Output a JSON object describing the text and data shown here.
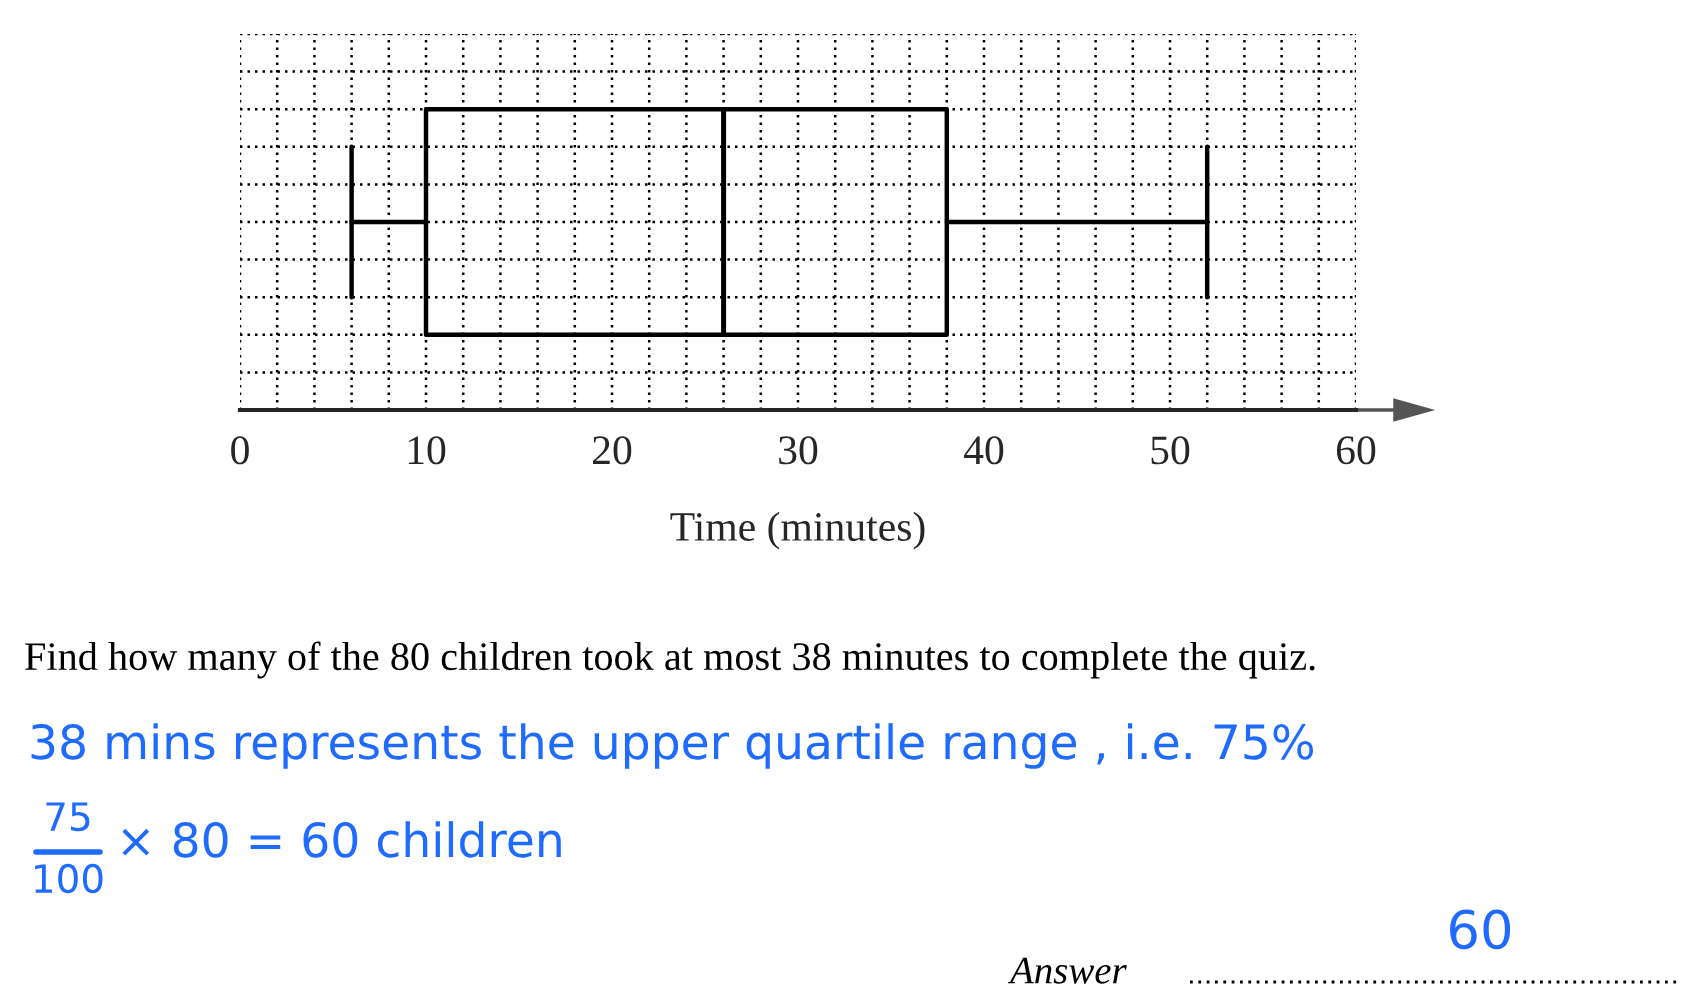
{
  "chart_data": {
    "type": "box",
    "orientation": "horizontal",
    "categories": [
      null
    ],
    "boxes": [
      {
        "low": 6,
        "q1": 10,
        "median": 26,
        "q3": 38,
        "high": 52
      }
    ],
    "xlim": [
      0,
      60
    ],
    "xticks": [
      0,
      10,
      20,
      30,
      40,
      50,
      60
    ],
    "xlabel": "Time (minutes)",
    "grid": true,
    "annotations": [
      "Find how many of the 80 children took at most 38 minutes to complete the quiz.",
      "38 mins represents the upper quartile range , i.e. 75%",
      "75",
      "100",
      "× 80 = 60 children",
      "Answer",
      "60"
    ]
  }
}
